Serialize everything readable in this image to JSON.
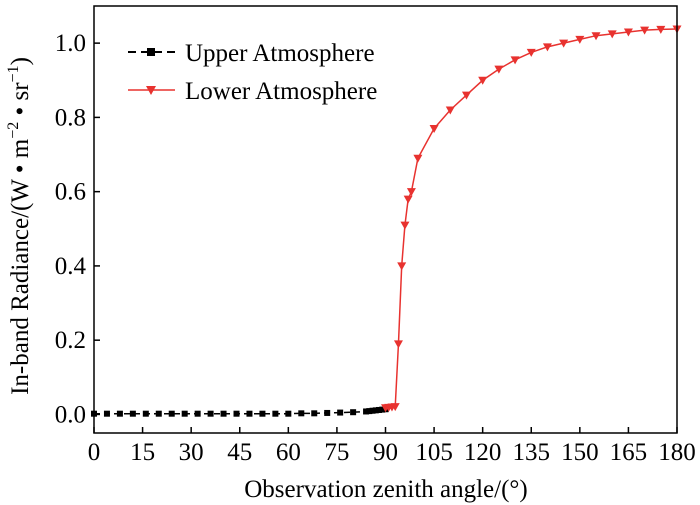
{
  "chart_data": {
    "type": "line",
    "xlabel": "Observation zenith angle/(°)",
    "ylabel": {
      "prefix": "In-band Radiance/(W • m",
      "sup1": "−2",
      "mid": " • sr",
      "sup2": "−1",
      "suffix": ")"
    },
    "xlim": [
      0,
      180
    ],
    "ylim": [
      -0.05,
      1.1
    ],
    "xticks": [
      0,
      15,
      30,
      45,
      60,
      75,
      90,
      105,
      120,
      135,
      150,
      165,
      180
    ],
    "xtick_labels": [
      "0",
      "15",
      "30",
      "45",
      "60",
      "75",
      "90",
      "105",
      "120",
      "135",
      "150",
      "165",
      "180"
    ],
    "yticks": [
      0.0,
      0.2,
      0.4,
      0.6,
      0.8,
      1.0
    ],
    "ytick_labels": [
      "0.0",
      "0.2",
      "0.4",
      "0.6",
      "0.8",
      "1.0"
    ],
    "grid": false,
    "legend_position": "top-left",
    "series": [
      {
        "name": "Upper Atmosphere",
        "color": "#000000",
        "marker": "square",
        "line_style": "dashed",
        "x": [
          0,
          4,
          8,
          12,
          16,
          20,
          24,
          28,
          32,
          36,
          40,
          44,
          48,
          52,
          56,
          60,
          64,
          68,
          72,
          76,
          80,
          84,
          85,
          86,
          87,
          88,
          89,
          90
        ],
        "y": [
          0.002,
          0.002,
          0.002,
          0.002,
          0.002,
          0.002,
          0.002,
          0.002,
          0.002,
          0.002,
          0.002,
          0.002,
          0.002,
          0.002,
          0.002,
          0.002,
          0.003,
          0.003,
          0.004,
          0.005,
          0.006,
          0.008,
          0.009,
          0.01,
          0.011,
          0.012,
          0.013,
          0.014
        ]
      },
      {
        "name": "Lower Atmosphere",
        "color": "#e8322f",
        "marker": "triangle-down",
        "line_style": "solid",
        "x": [
          90,
          91,
          92,
          93,
          94,
          95,
          96,
          97,
          98,
          100,
          105,
          110,
          115,
          120,
          125,
          130,
          135,
          140,
          145,
          150,
          155,
          160,
          165,
          170,
          175,
          180
        ],
        "y": [
          0.018,
          0.019,
          0.02,
          0.021,
          0.19,
          0.4,
          0.51,
          0.58,
          0.6,
          0.69,
          0.77,
          0.82,
          0.86,
          0.9,
          0.93,
          0.955,
          0.975,
          0.99,
          1.0,
          1.01,
          1.02,
          1.025,
          1.03,
          1.035,
          1.037,
          1.038
        ]
      }
    ]
  }
}
